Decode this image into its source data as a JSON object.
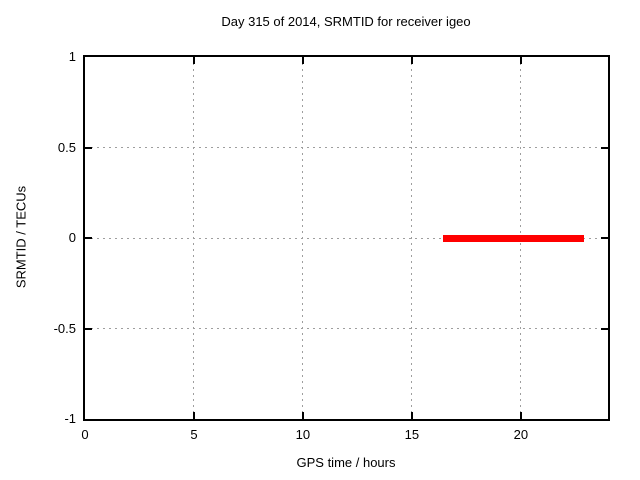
{
  "chart_data": {
    "type": "scatter",
    "title": "Day 315 of 2014, SRMTID for receiver igeo",
    "xlabel": "GPS time / hours",
    "ylabel": "SRMTID / TECUs",
    "xlim": [
      0,
      24
    ],
    "ylim": [
      -1,
      1
    ],
    "xticks": {
      "values": [
        0,
        5,
        10,
        15,
        20
      ],
      "labels": [
        "0",
        "5",
        "10",
        "15",
        "20"
      ]
    },
    "yticks": {
      "values": [
        1,
        0.5,
        0,
        -0.5,
        -1
      ],
      "labels": [
        "1",
        "0.5",
        "0",
        "-0.5",
        "-1"
      ]
    },
    "grid": true,
    "legend": "none",
    "series": [
      {
        "name": "SRMTID",
        "marker": "filled-square",
        "color": "#ff0000",
        "y_value": 0,
        "x_segments": [
          [
            16.55,
            16.73
          ],
          [
            16.8,
            17.75
          ],
          [
            17.82,
            18.4
          ],
          [
            18.46,
            18.68
          ],
          [
            18.74,
            19.55
          ],
          [
            19.62,
            20.5
          ],
          [
            20.57,
            21.88
          ],
          [
            21.95,
            22.52
          ],
          [
            22.58,
            22.72
          ]
        ]
      }
    ],
    "colors": {
      "background": "#ffffff",
      "border": "#000000",
      "grid": "#9e9e9e",
      "text": "#000000",
      "series": "#ff0000"
    }
  }
}
